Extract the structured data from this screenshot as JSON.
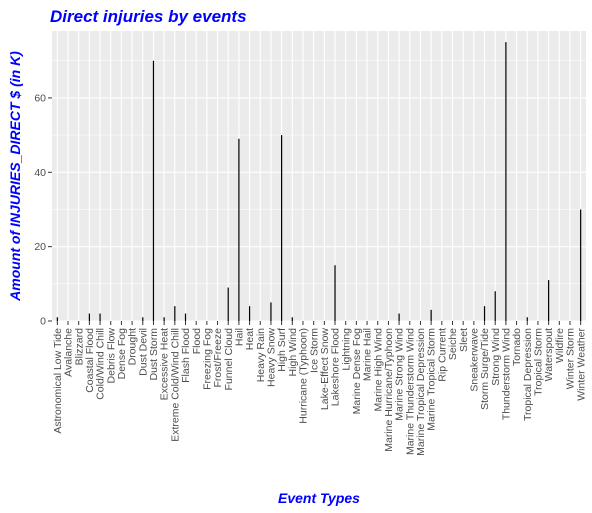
{
  "chart_data": {
    "type": "bar",
    "title": "Direct injuries by events",
    "xlabel": "Event Types",
    "ylabel": "Amount of INJURIES_DIRECT $ (in K)",
    "ylim": [
      0,
      78
    ],
    "yticks": [
      0,
      20,
      40,
      60
    ],
    "grid": true,
    "categories": [
      "Astronomical Low Tide",
      "Avalanche",
      "Blizzard",
      "Coastal Flood",
      "Cold/Wind Chill",
      "Debris Flow",
      "Dense Fog",
      "Drought",
      "Dust Devil",
      "Dust Storm",
      "Excessive Heat",
      "Extreme Cold/Wind Chill",
      "Flash Flood",
      "Flood",
      "Freezing Fog",
      "Frost/Freeze",
      "Funnel Cloud",
      "Hail",
      "Heat",
      "Heavy Rain",
      "Heavy Snow",
      "High Surf",
      "High Wind",
      "Hurricane (Typhoon)",
      "Ice Storm",
      "Lake-Effect Snow",
      "Lakeshore Flood",
      "Lightning",
      "Marine Dense Fog",
      "Marine Hail",
      "Marine High Wind",
      "Marine Hurricane/Typhoon",
      "Marine Strong Wind",
      "Marine Thunderstorm Wind",
      "Marine Tropical Depression",
      "Marine Tropical Storm",
      "Rip Current",
      "Seiche",
      "Sleet",
      "Sneakerwave",
      "Storm Surge/Tide",
      "Strong Wind",
      "Thunderstorm Wind",
      "Tornado",
      "Tropical Depression",
      "Tropical Storm",
      "Waterspout",
      "Wildfire",
      "Winter Storm",
      "Winter Weather"
    ],
    "values": [
      1,
      0,
      0,
      2,
      2,
      0,
      0,
      0,
      1,
      70,
      1,
      4,
      2,
      0,
      0,
      0,
      9,
      49,
      4,
      0,
      5,
      50,
      1,
      0,
      0,
      0,
      15,
      0,
      0,
      0,
      0,
      0,
      2,
      0,
      0,
      3,
      0,
      0,
      0,
      0,
      4,
      8,
      75,
      0,
      1,
      0,
      11,
      0,
      0,
      30
    ],
    "colors": {
      "panel": "#ebebeb",
      "grid": "#ffffff",
      "bar": "#000000",
      "title": "#0000ff",
      "tick_text": "#4d4d4d"
    }
  }
}
